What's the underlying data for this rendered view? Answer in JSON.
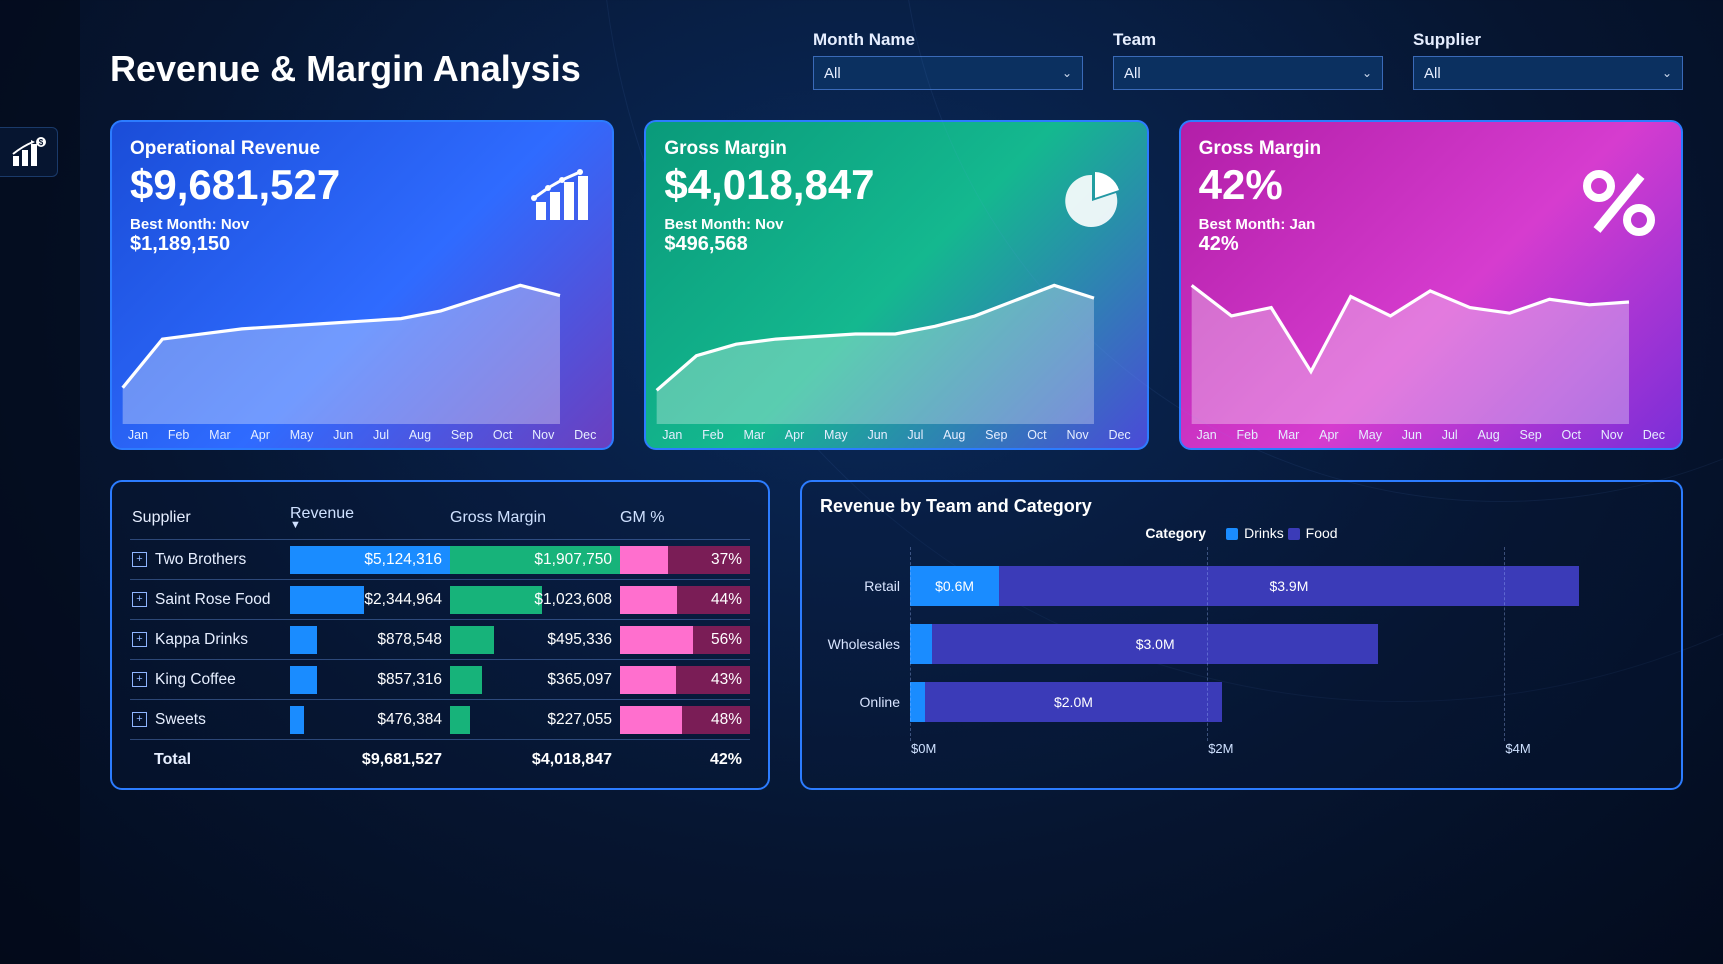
{
  "title": "Revenue & Margin Analysis",
  "filters": [
    {
      "label": "Month Name",
      "value": "All"
    },
    {
      "label": "Team",
      "value": "All"
    },
    {
      "label": "Supplier",
      "value": "All"
    }
  ],
  "months": [
    "Jan",
    "Feb",
    "Mar",
    "Apr",
    "May",
    "Jun",
    "Jul",
    "Aug",
    "Sep",
    "Oct",
    "Nov",
    "Dec"
  ],
  "cards": [
    {
      "title": "Operational Revenue",
      "value": "$9,681,527",
      "best_label": "Best Month: Nov",
      "best_value": "$1,189,150",
      "bg": "linear-gradient(135deg,#1a4dd8 0%,#2f6bff 55%,#6b3fbf 100%)",
      "spark": [
        20,
        58,
        62,
        66,
        68,
        70,
        72,
        74,
        80,
        90,
        100,
        92
      ],
      "line_color": "#ffffff",
      "fill": "rgba(255,255,255,0.32)",
      "icon": "barchart"
    },
    {
      "title": "Gross Margin",
      "value": "$4,018,847",
      "best_label": "Best Month: Nov",
      "best_value": "$496,568",
      "bg": "linear-gradient(135deg,#0a9a7a 0%,#14b88f 50%,#4a4ad8 100%)",
      "spark": [
        18,
        45,
        54,
        58,
        60,
        62,
        62,
        68,
        76,
        88,
        100,
        90
      ],
      "line_color": "#ffffff",
      "fill": "rgba(255,255,255,0.30)",
      "icon": "pie"
    },
    {
      "title": "Gross Margin",
      "value": "42%",
      "best_label": "Best Month: Jan",
      "best_value": "42%",
      "bg": "linear-gradient(135deg,#b21ea8 0%,#d63ccf 55%,#7a2ed8 100%)",
      "spark": [
        92,
        70,
        76,
        30,
        84,
        70,
        88,
        76,
        72,
        82,
        78,
        80
      ],
      "line_color": "#ffffff",
      "fill": "rgba(255,255,255,0.32)",
      "icon": "percent"
    }
  ],
  "table": {
    "columns": [
      "Supplier",
      "Revenue",
      "Gross Margin",
      "GM %"
    ],
    "rows": [
      {
        "name": "Two Brothers",
        "rev": "$5,124,316",
        "rev_w": 100,
        "gm": "$1,907,750",
        "gm_w": 100,
        "pct": "37%",
        "pct_w": 37
      },
      {
        "name": "Saint Rose Food",
        "rev": "$2,344,964",
        "rev_w": 46,
        "gm": "$1,023,608",
        "gm_w": 54,
        "pct": "44%",
        "pct_w": 44
      },
      {
        "name": "Kappa Drinks",
        "rev": "$878,548",
        "rev_w": 17,
        "gm": "$495,336",
        "gm_w": 26,
        "pct": "56%",
        "pct_w": 56
      },
      {
        "name": "King Coffee",
        "rev": "$857,316",
        "rev_w": 17,
        "gm": "$365,097",
        "gm_w": 19,
        "pct": "43%",
        "pct_w": 43
      },
      {
        "name": "Sweets",
        "rev": "$476,384",
        "rev_w": 9,
        "gm": "$227,055",
        "gm_w": 12,
        "pct": "48%",
        "pct_w": 48
      }
    ],
    "total": {
      "label": "Total",
      "rev": "$9,681,527",
      "gm": "$4,018,847",
      "pct": "42%"
    }
  },
  "barchart": {
    "title": "Revenue by Team and Category",
    "legend_label": "Category",
    "legend": [
      {
        "name": "Drinks",
        "color": "#1a8cff"
      },
      {
        "name": "Food",
        "color": "#3b3bb8"
      }
    ],
    "max": 5,
    "rows": [
      {
        "label": "Retail",
        "segments": [
          {
            "val": 0.6,
            "text": "$0.6M",
            "color": "#1a8cff"
          },
          {
            "val": 3.9,
            "text": "$3.9M",
            "color": "#3b3bb8"
          }
        ]
      },
      {
        "label": "Wholesales",
        "segments": [
          {
            "val": 0.15,
            "text": "",
            "color": "#1a8cff"
          },
          {
            "val": 3.0,
            "text": "$3.0M",
            "color": "#3b3bb8"
          }
        ]
      },
      {
        "label": "Online",
        "segments": [
          {
            "val": 0.1,
            "text": "",
            "color": "#1a8cff"
          },
          {
            "val": 2.0,
            "text": "$2.0M",
            "color": "#3b3bb8"
          }
        ]
      }
    ],
    "xticks": [
      {
        "v": 0,
        "label": "$0M"
      },
      {
        "v": 2,
        "label": "$2M"
      },
      {
        "v": 4,
        "label": "$4M"
      }
    ]
  },
  "colors": {
    "border": "#2c7cff",
    "row56": "#7a1d56"
  }
}
